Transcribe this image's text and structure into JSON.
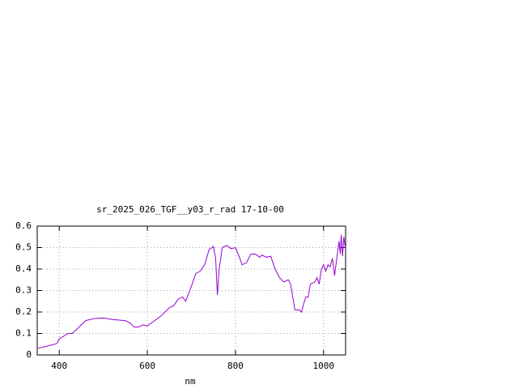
{
  "chart_data": {
    "type": "line",
    "title": "sr_2025_026_TGF__y03_r_rad 17-10-00",
    "x_label": "nm",
    "xlim": [
      350,
      1050
    ],
    "xticks": [
      400,
      600,
      800,
      1000
    ],
    "ylim": [
      0,
      0.6
    ],
    "yticks": [
      0,
      0.1,
      0.2,
      0.3,
      0.4,
      0.5,
      0.6
    ],
    "grid": true,
    "series": [
      {
        "color": "#9400d3",
        "x": [
          350,
          370,
          390,
          395,
          400,
          420,
          430,
          450,
          460,
          480,
          500,
          520,
          550,
          560,
          570,
          580,
          590,
          600,
          610,
          630,
          640,
          650,
          660,
          670,
          680,
          687,
          700,
          710,
          720,
          730,
          740,
          750,
          755,
          759,
          763,
          770,
          780,
          790,
          800,
          810,
          815,
          825,
          835,
          845,
          855,
          860,
          870,
          880,
          890,
          900,
          910,
          920,
          925,
          935,
          945,
          950,
          955,
          960,
          965,
          970,
          980,
          985,
          990,
          995,
          1000,
          1005,
          1010,
          1015,
          1020,
          1025,
          1030,
          1035,
          1038,
          1040,
          1043,
          1046,
          1050
        ],
        "values": [
          0.03,
          0.04,
          0.05,
          0.055,
          0.075,
          0.1,
          0.1,
          0.14,
          0.16,
          0.17,
          0.172,
          0.165,
          0.16,
          0.15,
          0.13,
          0.13,
          0.14,
          0.135,
          0.15,
          0.18,
          0.2,
          0.22,
          0.23,
          0.26,
          0.27,
          0.25,
          0.32,
          0.38,
          0.39,
          0.42,
          0.49,
          0.505,
          0.45,
          0.28,
          0.4,
          0.5,
          0.51,
          0.495,
          0.5,
          0.45,
          0.42,
          0.43,
          0.47,
          0.47,
          0.455,
          0.465,
          0.455,
          0.46,
          0.4,
          0.36,
          0.34,
          0.35,
          0.33,
          0.21,
          0.21,
          0.2,
          0.24,
          0.27,
          0.27,
          0.33,
          0.34,
          0.36,
          0.33,
          0.4,
          0.42,
          0.39,
          0.42,
          0.41,
          0.45,
          0.37,
          0.45,
          0.53,
          0.47,
          0.56,
          0.46,
          0.55,
          0.49
        ]
      }
    ]
  }
}
